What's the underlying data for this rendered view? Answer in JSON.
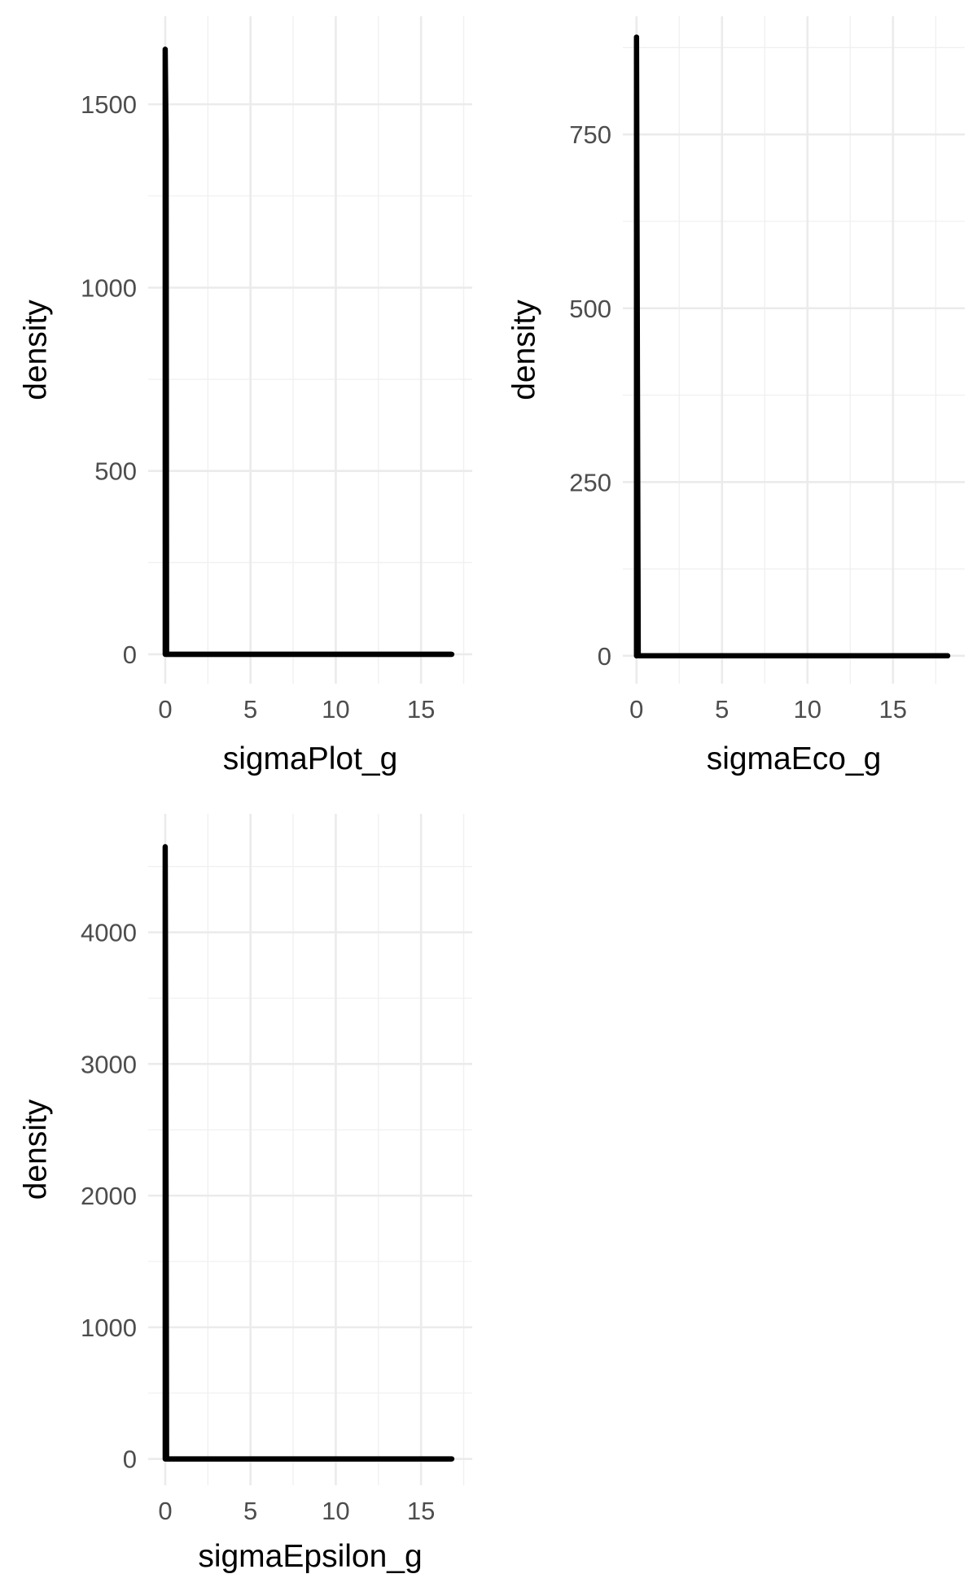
{
  "chart_data": [
    {
      "type": "area",
      "xlabel": "sigmaPlot_g",
      "ylabel": "density",
      "xlim": [
        -1,
        18
      ],
      "ylim": [
        -80,
        1740
      ],
      "x_ticks": [
        0,
        5,
        10,
        15
      ],
      "y_ticks": [
        0,
        500,
        1000,
        1500
      ],
      "grid": true,
      "series": [
        {
          "values": [
            [
              0,
              1650
            ],
            [
              0.05,
              1400
            ],
            [
              0.08,
              0
            ],
            [
              16.8,
              0
            ]
          ]
        }
      ],
      "colors": {
        "density_line": "#000000",
        "baseline": "#d00000"
      }
    },
    {
      "type": "area",
      "xlabel": "sigmaEco_g",
      "ylabel": "density",
      "xlim": [
        -0.8,
        19.2
      ],
      "ylim": [
        -40,
        920
      ],
      "x_ticks": [
        0,
        5,
        10,
        15
      ],
      "y_ticks": [
        0,
        250,
        500,
        750
      ],
      "grid": true,
      "series": [
        {
          "values": [
            [
              0,
              890
            ],
            [
              0.05,
              405
            ],
            [
              0.1,
              0
            ],
            [
              18.2,
              0
            ]
          ]
        }
      ],
      "colors": {
        "density_line": "#000000",
        "baseline": "#d00000"
      }
    },
    {
      "type": "area",
      "xlabel": "sigmaEpsilon_g",
      "ylabel": "density",
      "xlim": [
        -1,
        18
      ],
      "ylim": [
        -200,
        4900
      ],
      "x_ticks": [
        0,
        5,
        10,
        15
      ],
      "y_ticks": [
        0,
        1000,
        2000,
        3000,
        4000
      ],
      "grid": true,
      "series": [
        {
          "values": [
            [
              0,
              4650
            ],
            [
              0.05,
              2000
            ],
            [
              0.08,
              0
            ],
            [
              16.8,
              0
            ]
          ]
        }
      ],
      "colors": {
        "density_line": "#000000",
        "baseline": "#d00000"
      }
    }
  ]
}
